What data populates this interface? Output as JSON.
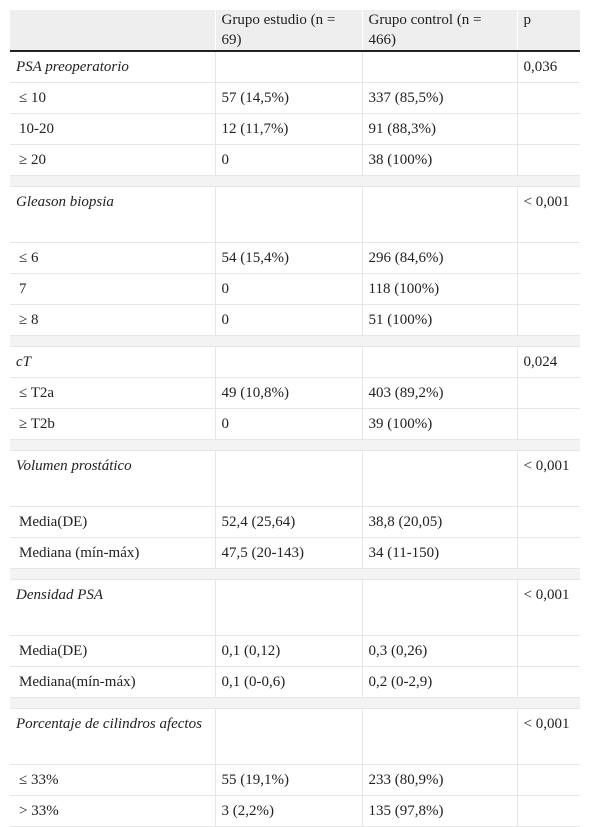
{
  "headers": [
    "",
    "Grupo estudio (n = 69)",
    "Grupo control (n = 466)",
    "p"
  ],
  "sections": [
    {
      "label": "PSA preoperatorio",
      "p": "0,036",
      "rows": [
        {
          "label": "≤ 10",
          "study": "57 (14,5%)",
          "control": "337 (85,5%)"
        },
        {
          "label": "10-20",
          "study": "12 (11,7%)",
          "control": "91 (88,3%)"
        },
        {
          "label": "≥ 20",
          "study": "0",
          "control": "38 (100%)"
        }
      ]
    },
    {
      "label": "Gleason biopsia",
      "p": "< 0,001",
      "rows": [
        {
          "label": "≤ 6",
          "study": "54 (15,4%)",
          "control": "296 (84,6%)"
        },
        {
          "label": "7",
          "study": "0",
          "control": "118 (100%)"
        },
        {
          "label": "≥ 8",
          "study": "0",
          "control": "51 (100%)"
        }
      ]
    },
    {
      "label": "cT",
      "p": "0,024",
      "rows": [
        {
          "label": "≤ T2a",
          "study": "49 (10,8%)",
          "control": "403 (89,2%)"
        },
        {
          "label": "≥ T2b",
          "study": "0",
          "control": "39 (100%)"
        }
      ]
    },
    {
      "label": "Volumen prostático",
      "p": "< 0,001",
      "rows": [
        {
          "label": "Media(DE)",
          "study": "52,4 (25,64)",
          "control": "38,8 (20,05)"
        },
        {
          "label": "Mediana (mín-máx)",
          "study": "47,5 (20-143)",
          "control": "34 (11-150)"
        }
      ]
    },
    {
      "label": "Densidad PSA",
      "p": "< 0,001",
      "rows": [
        {
          "label": "Media(DE)",
          "study": "0,1 (0,12)",
          "control": "0,3 (0,26)"
        },
        {
          "label": "Mediana(mín-máx)",
          "study": "0,1 (0-0,6)",
          "control": "0,2 (0-2,9)"
        }
      ]
    },
    {
      "label": "Porcentaje de cilindros afectos",
      "p": "< 0,001",
      "rows": [
        {
          "label": "≤ 33%",
          "study": "55 (19,1%)",
          "control": "233 (80,9%)"
        },
        {
          "label": "> 33%",
          "study": "3 (2,2%)",
          "control": "135 (97,8%)"
        }
      ]
    }
  ]
}
